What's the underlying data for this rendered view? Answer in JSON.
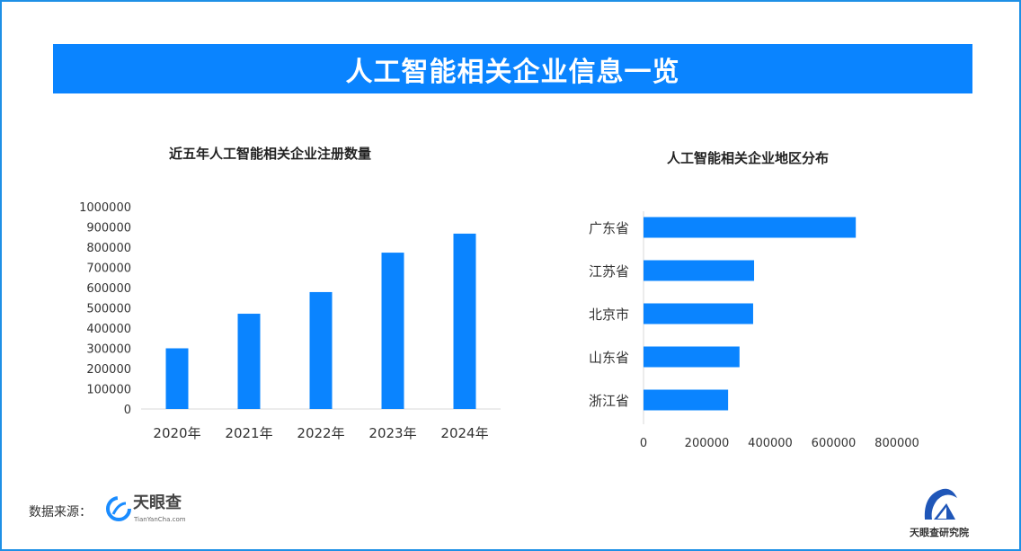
{
  "banner": {
    "title": "人工智能相关企业信息一览"
  },
  "footer": {
    "source_label": "数据来源：",
    "logo_name": "天眼查",
    "logo_sub": "TianYanCha.com",
    "institute": "天眼查研究院"
  },
  "colors": {
    "bar": "#0a84ff",
    "banner": "#0a84ff",
    "border": "#1e90e6"
  },
  "chart_data": [
    {
      "type": "bar",
      "title": "近五年人工智能相关企业注册数量",
      "categories": [
        "2020年",
        "2021年",
        "2022年",
        "2023年",
        "2024年"
      ],
      "values": [
        300000,
        471000,
        578000,
        773000,
        867000
      ],
      "ylim": [
        0,
        1000000
      ],
      "yticks": [
        "0",
        "100000",
        "200000",
        "300000",
        "400000",
        "500000",
        "600000",
        "700000",
        "800000",
        "900000",
        "1000000"
      ],
      "grid": false
    },
    {
      "type": "bar",
      "orientation": "horizontal",
      "title": "人工智能相关企业地区分布",
      "categories": [
        "广东省",
        "江苏省",
        "北京市",
        "山东省",
        "浙江省"
      ],
      "values": [
        670000,
        349000,
        346000,
        303000,
        267000
      ],
      "xlim": [
        0,
        800000
      ],
      "xticks": [
        "0",
        "200000",
        "400000",
        "600000",
        "800000"
      ],
      "grid": false
    }
  ]
}
